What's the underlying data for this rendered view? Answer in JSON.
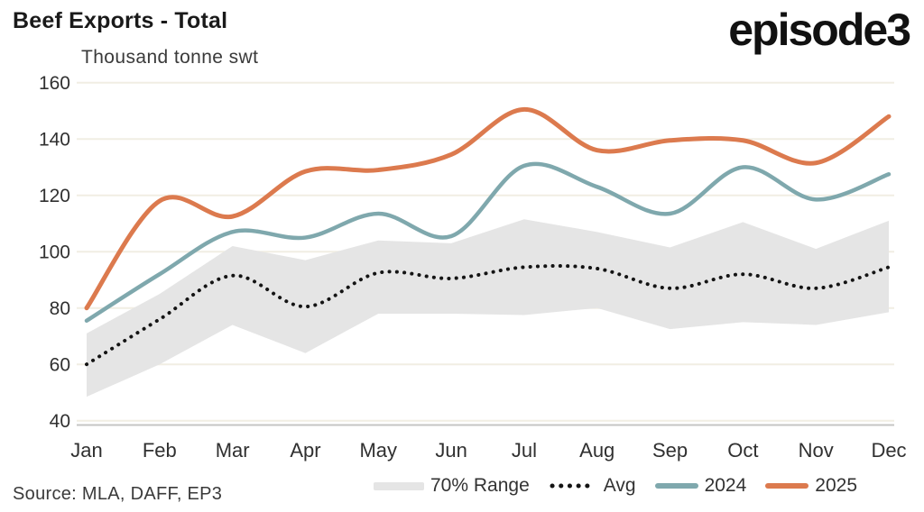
{
  "header": {
    "title": "Beef Exports - Total",
    "subtitle": "Thousand tonne swt",
    "logo_text": "episode3"
  },
  "footer": {
    "source": "Source: MLA, DAFF, EP3"
  },
  "colors": {
    "band": "#E5E5E5",
    "avg": "#141414",
    "y2024": "#7FA8AD",
    "y2025": "#DC7A4E",
    "gridline": "#F1EEE3",
    "axis_line": "#C6C6C4",
    "tick_text": "#303030"
  },
  "chart_data": {
    "type": "line",
    "title": "Beef Exports - Total",
    "ylabel": "Thousand tonne swt",
    "xlabel": "",
    "ylim": [
      40,
      160
    ],
    "ytick_step": 20,
    "yticks": [
      40,
      60,
      80,
      100,
      120,
      140,
      160
    ],
    "grid": "horizontal",
    "legend_position": "bottom",
    "categories": [
      "Jan",
      "Feb",
      "Mar",
      "Apr",
      "May",
      "Jun",
      "Jul",
      "Aug",
      "Sep",
      "Oct",
      "Nov",
      "Dec"
    ],
    "band": {
      "name": "70% Range",
      "low": [
        48.5,
        60,
        74,
        64,
        78,
        78,
        77.5,
        80,
        72.5,
        75,
        74,
        78.5
      ],
      "high": [
        71,
        85,
        102,
        97,
        104,
        103,
        111.5,
        107,
        101.5,
        110.5,
        101,
        111
      ]
    },
    "series": [
      {
        "name": "Avg",
        "style": "dotted",
        "values": [
          60,
          76,
          91.5,
          80.5,
          92.5,
          90.5,
          94.5,
          94,
          87,
          92,
          87,
          94.5
        ]
      },
      {
        "name": "2024",
        "style": "solid",
        "values": [
          75.5,
          92,
          107,
          105,
          113.5,
          105.5,
          130.5,
          123,
          113.5,
          130,
          118.5,
          127.5
        ]
      },
      {
        "name": "2025",
        "style": "solid",
        "values": [
          80,
          118,
          112.5,
          128.5,
          129,
          134.5,
          150.5,
          136,
          139.5,
          139.5,
          131.5,
          148
        ]
      }
    ]
  }
}
